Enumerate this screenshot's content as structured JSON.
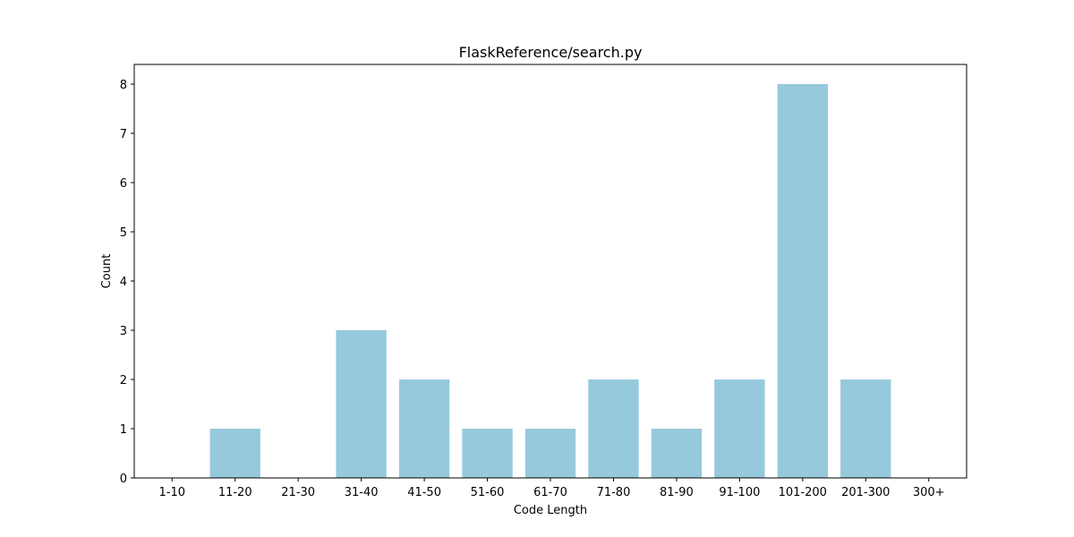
{
  "chart_data": {
    "type": "bar",
    "title": "FlaskReference/search.py",
    "xlabel": "Code Length",
    "ylabel": "Count",
    "categories": [
      "1-10",
      "11-20",
      "21-30",
      "31-40",
      "41-50",
      "51-60",
      "61-70",
      "71-80",
      "81-90",
      "91-100",
      "101-200",
      "201-300",
      "300+"
    ],
    "values": [
      0,
      1,
      0,
      3,
      2,
      1,
      1,
      2,
      1,
      2,
      8,
      2,
      0
    ],
    "ylim": [
      0,
      8.4
    ],
    "yticks": [
      "0",
      "1",
      "2",
      "3",
      "4",
      "5",
      "6",
      "7",
      "8"
    ],
    "bar_color": "#96c9dc",
    "grid": false,
    "legend": "none"
  }
}
